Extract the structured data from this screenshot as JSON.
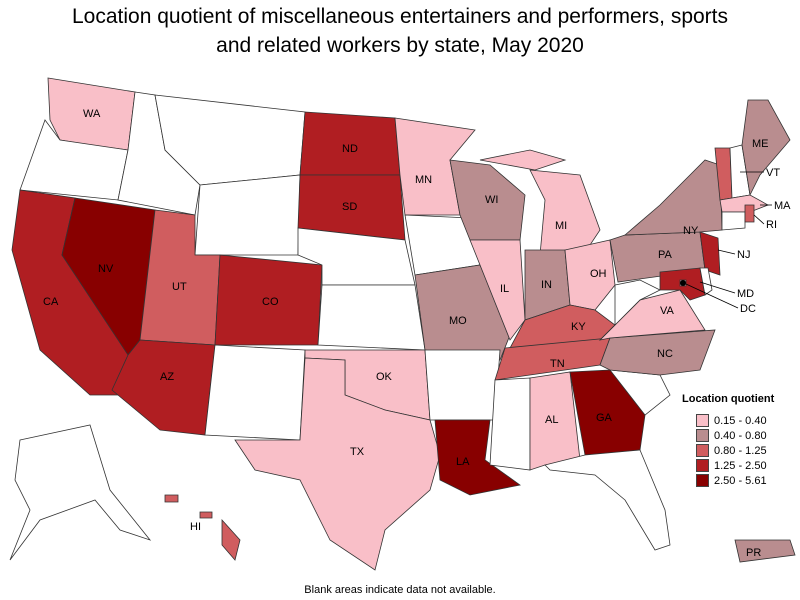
{
  "title_line1": "Location quotient of miscellaneous entertainers and performers, sports",
  "title_line2": "and related workers by state, May 2020",
  "legend": {
    "title": "Location quotient",
    "items": [
      {
        "label": "0.15 - 0.40",
        "color": "#f9bfc8"
      },
      {
        "label": "0.40 - 0.80",
        "color": "#b98d8f"
      },
      {
        "label": "0.80 - 1.25",
        "color": "#d05d5f"
      },
      {
        "label": "1.25 - 2.50",
        "color": "#b01e22"
      },
      {
        "label": "2.50 - 5.61",
        "color": "#880000"
      }
    ]
  },
  "footnote": "Blank areas indicate data not available.",
  "states": {
    "WA": "0.15 - 0.40",
    "CA": "1.25 - 2.50",
    "NV": "2.50 - 5.61",
    "UT": "0.80 - 1.25",
    "AZ": "1.25 - 2.50",
    "CO": "1.25 - 2.50",
    "ND": "1.25 - 2.50",
    "SD": "1.25 - 2.50",
    "MN": "0.15 - 0.40",
    "WI": "0.40 - 0.80",
    "MI": "0.15 - 0.40",
    "IL": "0.15 - 0.40",
    "IN": "0.40 - 0.80",
    "OH": "0.15 - 0.40",
    "MO": "0.40 - 0.80",
    "KY": "0.80 - 1.25",
    "TN": "0.80 - 1.25",
    "OK": "0.15 - 0.40",
    "TX": "0.15 - 0.40",
    "LA": "2.50 - 5.61",
    "AL": "0.15 - 0.40",
    "GA": "2.50 - 5.61",
    "NC": "0.40 - 0.80",
    "VA": "0.15 - 0.40",
    "PA": "0.40 - 0.80",
    "NY": "0.40 - 0.80",
    "NJ": "1.25 - 2.50",
    "MD": "1.25 - 2.50",
    "DC": "0.15 - 0.40",
    "ME": "0.40 - 0.80",
    "VT": "0.80 - 1.25",
    "MA": "0.15 - 0.40",
    "RI": "0.80 - 1.25",
    "HI": "0.80 - 1.25",
    "PR": "0.40 - 0.80"
  }
}
